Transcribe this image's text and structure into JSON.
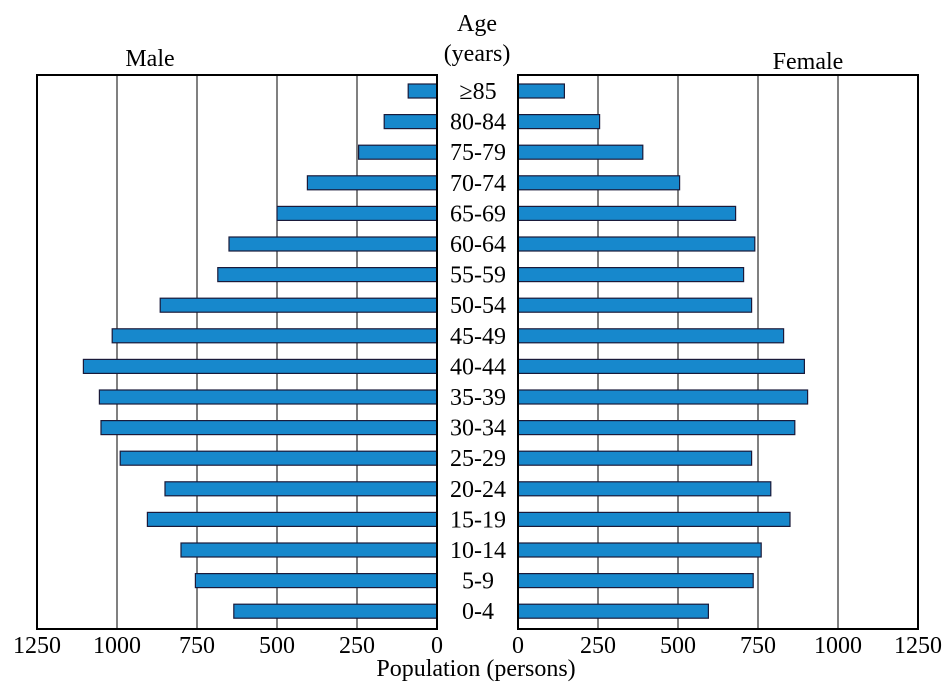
{
  "chart_data": {
    "type": "bar",
    "orientation": "horizontal",
    "layout": "population-pyramid",
    "categories": [
      "≥85",
      "80-84",
      "75-79",
      "70-74",
      "65-69",
      "60-64",
      "55-59",
      "50-54",
      "45-49",
      "40-44",
      "35-39",
      "30-34",
      "25-29",
      "20-24",
      "15-19",
      "10-14",
      "5-9",
      "0-4"
    ],
    "category_title": [
      "Age",
      "(years)"
    ],
    "series": [
      {
        "name": "Male",
        "values": [
          90,
          165,
          245,
          405,
          500,
          650,
          685,
          865,
          1015,
          1105,
          1055,
          1050,
          990,
          850,
          905,
          800,
          755,
          635
        ]
      },
      {
        "name": "Female",
        "values": [
          145,
          255,
          390,
          505,
          680,
          740,
          705,
          730,
          830,
          895,
          905,
          865,
          730,
          790,
          850,
          760,
          735,
          595
        ]
      }
    ],
    "xlabel": "Population (persons)",
    "xlim": [
      0,
      1250
    ],
    "ticks": [
      "1250",
      "1000",
      "750",
      "500",
      "250",
      "0"
    ],
    "tick_values": [
      1250,
      1000,
      750,
      500,
      250,
      0
    ],
    "grid": true,
    "colors": {
      "bar": "#1788cc",
      "bar_edge": "#1a1a3a"
    }
  }
}
